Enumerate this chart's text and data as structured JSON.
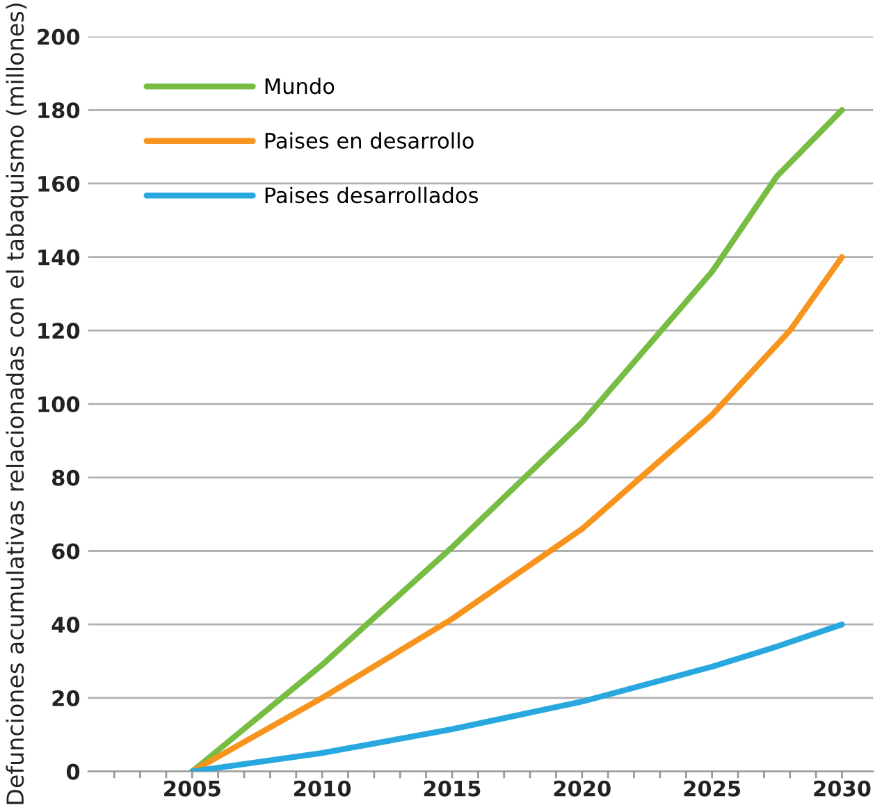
{
  "chart_data": {
    "type": "line",
    "ylabel": "Defunciones acumulativas relacionadas con el tabaquismo (millones)",
    "series": [
      {
        "name": "Mundo",
        "color": "#77bc43",
        "x": [
          2005,
          2010,
          2015,
          2020,
          2025,
          2027.5,
          2030
        ],
        "values": [
          0,
          29,
          61,
          95,
          136,
          162,
          180
        ]
      },
      {
        "name": "Paises en desarrollo",
        "color": "#f7941d",
        "x": [
          2005,
          2010,
          2015,
          2020,
          2025,
          2028,
          2030
        ],
        "values": [
          0,
          20,
          41.5,
          66,
          97,
          120,
          140
        ]
      },
      {
        "name": "Paises desarrollados",
        "color": "#29a8e0",
        "x": [
          2005,
          2010,
          2015,
          2020,
          2025,
          2027.5,
          2030
        ],
        "values": [
          0,
          5,
          11.5,
          19,
          28.5,
          34,
          40
        ]
      }
    ],
    "xlim": [
      2001,
      2031.2
    ],
    "xticks": [
      {
        "value": 2002,
        "label": null
      },
      {
        "value": 2003,
        "label": null
      },
      {
        "value": 2004,
        "label": null
      },
      2005,
      {
        "value": 2006,
        "label": null
      },
      {
        "value": 2007,
        "label": null
      },
      {
        "value": 2008,
        "label": null
      },
      {
        "value": 2009,
        "label": null
      },
      2010,
      {
        "value": 2011,
        "label": null
      },
      {
        "value": 2012,
        "label": null
      },
      {
        "value": 2013,
        "label": null
      },
      {
        "value": 2014,
        "label": null
      },
      2015,
      {
        "value": 2016,
        "label": null
      },
      {
        "value": 2017,
        "label": null
      },
      {
        "value": 2018,
        "label": null
      },
      {
        "value": 2019,
        "label": null
      },
      2020,
      {
        "value": 2021,
        "label": null
      },
      {
        "value": 2022,
        "label": null
      },
      {
        "value": 2023,
        "label": null
      },
      {
        "value": 2024,
        "label": null
      },
      2025,
      {
        "value": 2026,
        "label": null
      },
      {
        "value": 2027,
        "label": null
      },
      {
        "value": 2028,
        "label": null
      },
      {
        "value": 2029,
        "label": null
      },
      2030
    ],
    "ylim": [
      0,
      200
    ],
    "yticks": [
      0,
      20,
      40,
      60,
      80,
      100,
      120,
      140,
      160,
      180,
      200
    ],
    "grid": "y",
    "legend": "top left",
    "marker": "none",
    "line_style": "solid"
  }
}
